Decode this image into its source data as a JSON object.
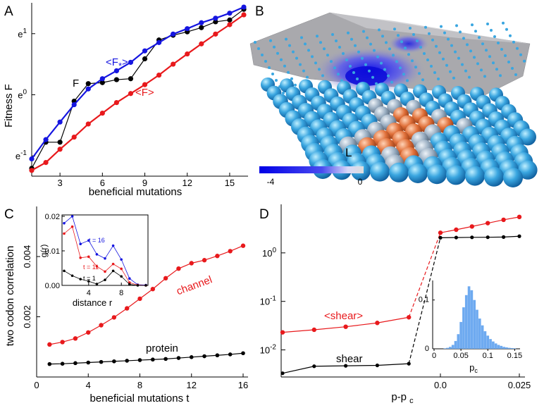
{
  "panels": {
    "A": {
      "letter": "A",
      "ylabel": "Fitness F",
      "xlabel": "beneficial mutations",
      "xticks": [
        "3",
        "6",
        "9",
        "12",
        "15"
      ],
      "yticks": [
        "e-1",
        "e0",
        "e1"
      ],
      "label_F": "F",
      "label_Fstar": "<F*>",
      "label_Favg": "<F>"
    },
    "B": {
      "letter": "B",
      "label_L": "L",
      "colorbar_min": "-4",
      "colorbar_max": "0"
    },
    "C": {
      "letter": "C",
      "ylabel": "two codon correlation",
      "xlabel": "beneficial mutations t",
      "xticks": [
        "0",
        "4",
        "8",
        "12",
        "16"
      ],
      "yticks": [
        "0.002",
        "0.004"
      ],
      "label_channel": "channel",
      "label_protein": "protein",
      "inset": {
        "ylabel": "g(r)",
        "xlabel": "distance r",
        "xticks": [
          "4",
          "8"
        ],
        "yticks": [
          "0.00",
          "0.01",
          "0.02"
        ],
        "t16": "t = 16",
        "t11": "t = 11",
        "t1": "t = 1"
      }
    },
    "D": {
      "letter": "D",
      "xlabel": "p-pc",
      "xticks": [
        "0.0",
        "0.025"
      ],
      "yticks": [
        "10-2",
        "10-1",
        "100"
      ],
      "label_avgshear": "<shear>",
      "label_shear": "shear",
      "inset": {
        "xlabel": "pc",
        "xticks": [
          "0",
          "0.05",
          "0.1",
          "0.15"
        ],
        "yticks": [
          "0",
          "0.1"
        ]
      }
    }
  },
  "colors": {
    "red": "#e8191c",
    "blue": "#1515e0",
    "black": "#000000",
    "hist": "#6eaaf0"
  },
  "chart_data": [
    {
      "type": "line",
      "panel": "A",
      "x": [
        1,
        2,
        3,
        4,
        5,
        6,
        7,
        8,
        9,
        10,
        11,
        12,
        13,
        14,
        15,
        16
      ],
      "yscale": "log",
      "ylim": [
        0.27,
        4.3
      ],
      "xlim": [
        1,
        16
      ],
      "series": [
        {
          "name": "<F*>",
          "color": "#1515e0",
          "values": [
            0.35,
            0.48,
            0.64,
            0.85,
            1.1,
            1.3,
            1.48,
            1.7,
            2.05,
            2.35,
            2.7,
            2.95,
            3.25,
            3.5,
            3.8,
            4.2
          ]
        },
        {
          "name": "F",
          "color": "#000000",
          "values": [
            0.3,
            0.46,
            0.46,
            0.9,
            1.2,
            1.22,
            1.28,
            1.3,
            1.8,
            2.45,
            2.65,
            2.8,
            3.0,
            3.3,
            3.4,
            4.05
          ]
        },
        {
          "name": "<F>",
          "color": "#e8191c",
          "values": [
            0.29,
            0.33,
            0.41,
            0.5,
            0.62,
            0.74,
            0.88,
            1.02,
            1.18,
            1.38,
            1.65,
            1.95,
            2.3,
            2.7,
            3.15,
            3.7
          ]
        }
      ]
    },
    {
      "type": "line",
      "panel": "C",
      "x": [
        1,
        2,
        3,
        4,
        5,
        6,
        7,
        8,
        9,
        10,
        11,
        12,
        13,
        14,
        15,
        16
      ],
      "xlim": [
        0,
        16
      ],
      "ylim": [
        0,
        0.0055
      ],
      "series": [
        {
          "name": "channel",
          "color": "#e8191c",
          "values": [
            0.00108,
            0.00116,
            0.00128,
            0.00148,
            0.00172,
            0.00198,
            0.00228,
            0.0026,
            0.00292,
            0.00328,
            0.0036,
            0.00378,
            0.00388,
            0.00402,
            0.00418,
            0.00436
          ]
        },
        {
          "name": "protein",
          "color": "#000000",
          "values": [
            0.00043,
            0.00044,
            0.00046,
            0.00048,
            0.0005,
            0.00052,
            0.00054,
            0.00056,
            0.00058,
            0.0006,
            0.00063,
            0.00066,
            0.00069,
            0.00072,
            0.00075,
            0.00079
          ]
        }
      ]
    },
    {
      "type": "line",
      "panel": "C-inset",
      "x": [
        1,
        2,
        3,
        4,
        5,
        6,
        7,
        8,
        9,
        10,
        11
      ],
      "xlim": [
        1,
        11
      ],
      "ylim": [
        0,
        0.02
      ],
      "series": [
        {
          "name": "t = 16",
          "color": "#1515e0",
          "values": [
            0.018,
            0.02,
            0.012,
            0.013,
            0.009,
            0.0078,
            0.0115,
            0.0075,
            0.002,
            0.0002,
            0.0001
          ]
        },
        {
          "name": "t = 11",
          "color": "#e8191c",
          "values": [
            0.015,
            0.017,
            0.008,
            0.0083,
            0.0055,
            0.004,
            0.0062,
            0.0048,
            0.0008,
            0.0001,
            0.0
          ]
        },
        {
          "name": "t = 1",
          "color": "#000000",
          "values": [
            0.0042,
            0.0028,
            0.0018,
            0.0012,
            0.0004,
            0.0016,
            0.0042,
            0.0026,
            0.0003,
            0.0,
            0.0
          ]
        }
      ]
    },
    {
      "type": "line",
      "panel": "D",
      "x": [
        -0.05,
        -0.04,
        -0.03,
        -0.02,
        -0.01,
        0.0,
        0.005,
        0.01,
        0.015,
        0.02,
        0.025
      ],
      "yscale": "log",
      "xlim": [
        -0.05,
        0.025
      ],
      "ylim": [
        0.0025,
        10
      ],
      "series": [
        {
          "name": "<shear>",
          "color": "#e8191c",
          "values": [
            0.023,
            0.026,
            0.03,
            0.036,
            0.047,
            2.6,
            3.0,
            3.5,
            4.1,
            4.8,
            5.5
          ]
        },
        {
          "name": "shear",
          "color": "#000000",
          "values": [
            0.0033,
            0.0046,
            0.0047,
            0.0048,
            0.0052,
            2.05,
            2.07,
            2.09,
            2.1,
            2.12,
            2.2
          ]
        }
      ]
    },
    {
      "type": "bar",
      "panel": "D-inset",
      "xlim": [
        0,
        0.16
      ],
      "ylim": [
        0,
        0.14
      ],
      "x": [
        0.02,
        0.025,
        0.03,
        0.035,
        0.04,
        0.045,
        0.05,
        0.055,
        0.06,
        0.065,
        0.07,
        0.075,
        0.08,
        0.085,
        0.09,
        0.095,
        0.1,
        0.105,
        0.11,
        0.115,
        0.12,
        0.125,
        0.13,
        0.135,
        0.14,
        0.145,
        0.15
      ],
      "values": [
        0.001,
        0.002,
        0.004,
        0.008,
        0.016,
        0.03,
        0.055,
        0.085,
        0.11,
        0.128,
        0.12,
        0.1,
        0.08,
        0.062,
        0.048,
        0.036,
        0.027,
        0.02,
        0.015,
        0.011,
        0.008,
        0.006,
        0.004,
        0.003,
        0.002,
        0.0015,
        0.001
      ]
    }
  ]
}
